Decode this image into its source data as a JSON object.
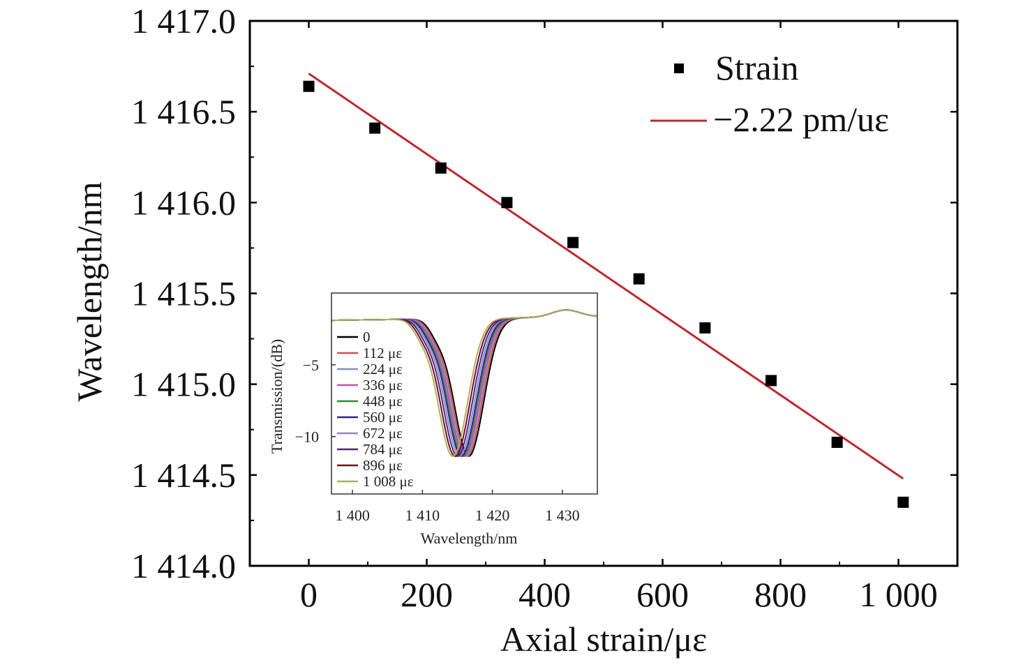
{
  "chart_data": [
    {
      "type": "scatter",
      "xlabel": "Axial strain/με",
      "ylabel": "Wavelength/nm",
      "xlim": [
        -100,
        1100
      ],
      "ylim": [
        1414.0,
        1417.0
      ],
      "x_ticks": [
        0,
        200,
        400,
        600,
        800,
        1000
      ],
      "x_tick_labels": [
        "0",
        "200",
        "400",
        "600",
        "800",
        "1 000"
      ],
      "y_ticks": [
        1414.0,
        1414.5,
        1415.0,
        1415.5,
        1416.0,
        1416.5,
        1417.0
      ],
      "y_tick_labels": [
        "1 414.0",
        "1 414.5",
        "1 415.0",
        "1 415.5",
        "1 416.0",
        "1 416.5",
        "1 417.0"
      ],
      "legend_position": "top-right",
      "series": [
        {
          "name": "Strain",
          "marker": "square",
          "color": "#000000",
          "x": [
            0,
            112,
            224,
            336,
            448,
            560,
            672,
            784,
            896,
            1008
          ],
          "y": [
            1416.64,
            1416.41,
            1416.19,
            1416.0,
            1415.78,
            1415.58,
            1415.31,
            1415.02,
            1414.68,
            1414.35
          ]
        },
        {
          "name": "−2.22 pm/uε",
          "kind": "fit-line",
          "color": "#c0272d",
          "x": [
            0,
            1008
          ],
          "y": [
            1416.71,
            1414.48
          ]
        }
      ]
    },
    {
      "type": "line",
      "placement": "inset",
      "xlabel": "Wavelength/nm",
      "ylabel": "Transmission/(dB)",
      "xlim": [
        1397,
        1435
      ],
      "ylim": [
        -14,
        0
      ],
      "x_ticks": [
        1400,
        1410,
        1420,
        1430
      ],
      "x_tick_labels": [
        "1 400",
        "1 410",
        "1 420",
        "1 430"
      ],
      "y_ticks": [
        -5,
        -10
      ],
      "y_tick_labels": [
        "−5",
        "−10"
      ],
      "legend_position": "left",
      "series": [
        {
          "name": "0",
          "color": "#000000",
          "center": 1416.64
        },
        {
          "name": "112 με",
          "color": "#e04a4a",
          "center": 1416.41
        },
        {
          "name": "224 με",
          "color": "#7b8fd0",
          "center": 1416.19
        },
        {
          "name": "336 με",
          "color": "#c04cc0",
          "center": 1416.0
        },
        {
          "name": "448 με",
          "color": "#2f8f2f",
          "center": 1415.78
        },
        {
          "name": "560 με",
          "color": "#23238f",
          "center": 1415.58
        },
        {
          "name": "672 με",
          "color": "#9a7fd0",
          "center": 1415.31
        },
        {
          "name": "784 με",
          "color": "#5a1f7a",
          "center": 1415.02
        },
        {
          "name": "896 με",
          "color": "#6a1414",
          "center": 1414.68
        },
        {
          "name": "1 008 με",
          "color": "#a8b060",
          "center": 1414.35
        }
      ]
    }
  ]
}
